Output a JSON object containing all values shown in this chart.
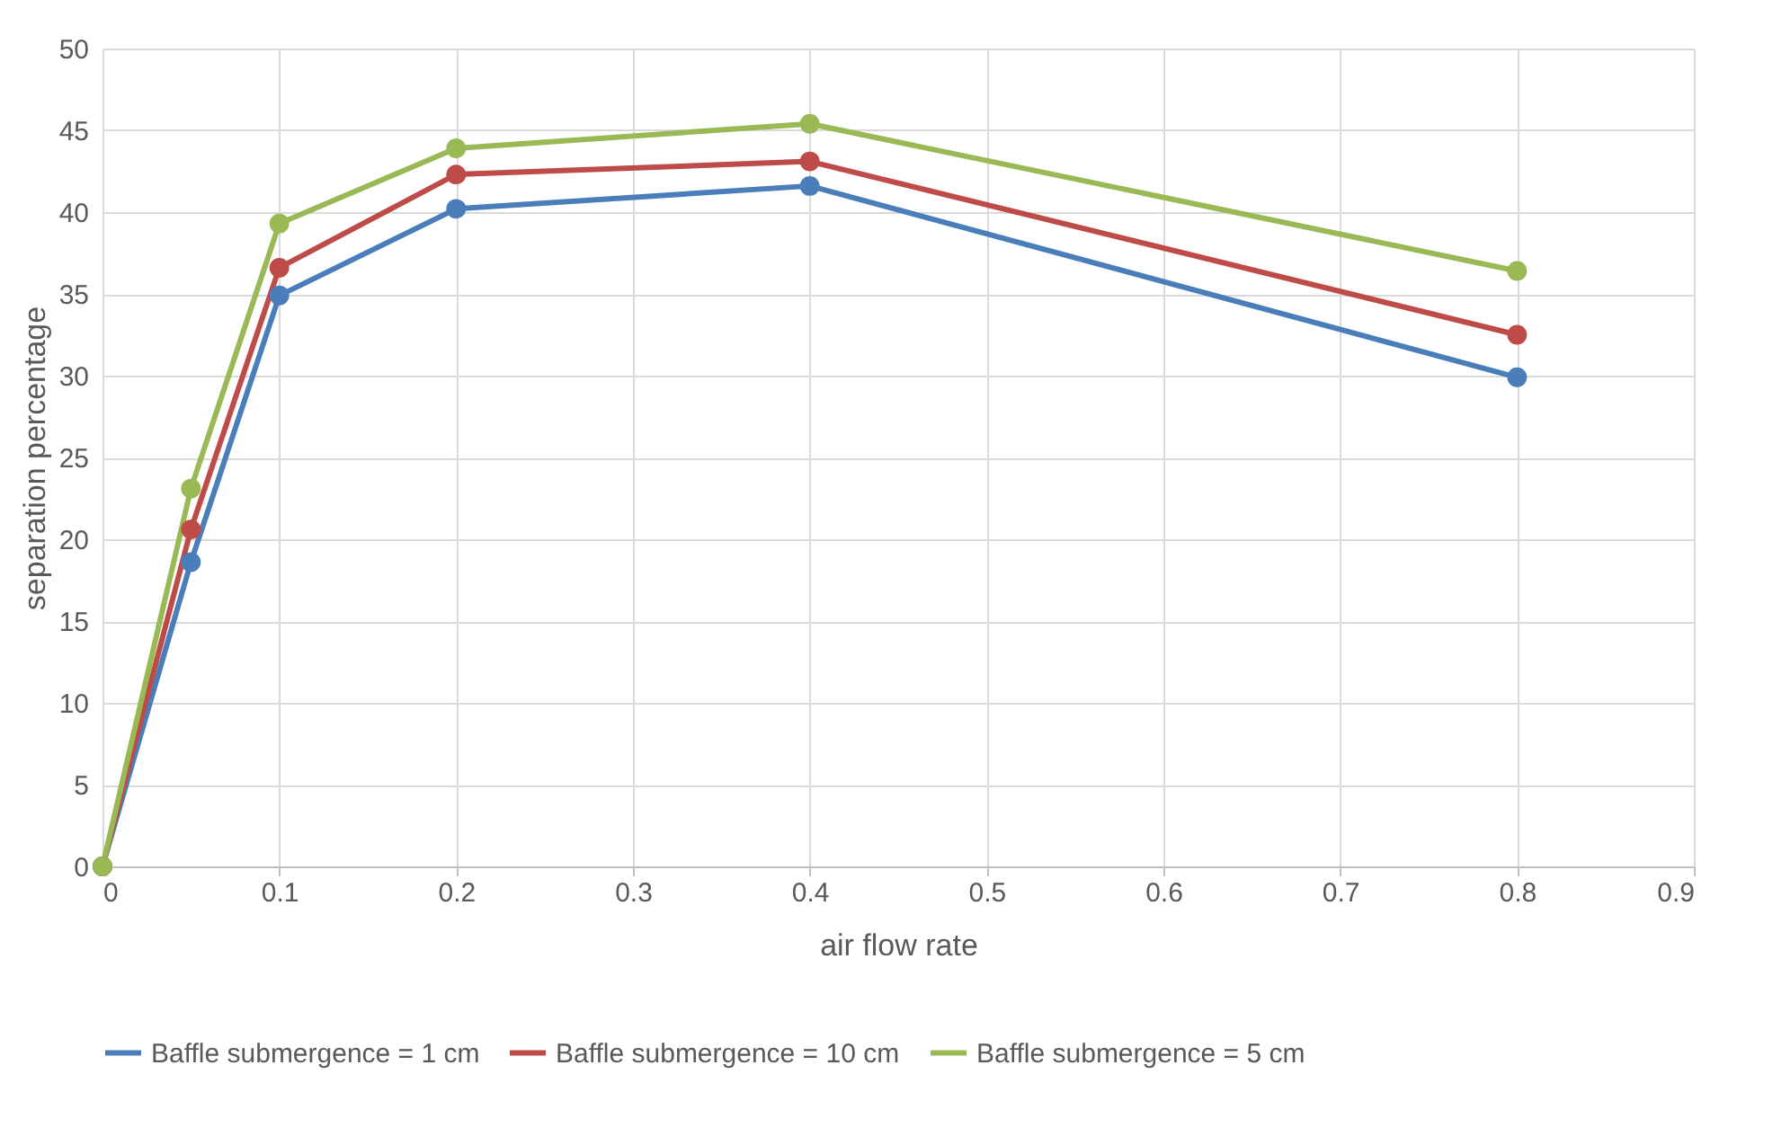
{
  "chart_data": {
    "type": "line",
    "xlabel": "air flow rate",
    "ylabel": "separation percentage",
    "x": [
      0,
      0.05,
      0.1,
      0.2,
      0.4,
      0.8
    ],
    "series": [
      {
        "name": "Baffle submergence = 1 cm",
        "color": "#4a7ebb",
        "values": [
          0,
          18.6,
          34.9,
          40.2,
          41.6,
          29.9
        ]
      },
      {
        "name": "Baffle submergence = 10 cm",
        "color": "#be4b48",
        "values": [
          0,
          20.6,
          36.6,
          42.3,
          43.1,
          32.5
        ]
      },
      {
        "name": "Baffle submergence = 5 cm",
        "color": "#98b954",
        "values": [
          0,
          23.1,
          39.3,
          43.9,
          45.4,
          36.4
        ]
      }
    ],
    "xlim": [
      0,
      0.9
    ],
    "xticks": [
      0,
      0.1,
      0.2,
      0.3,
      0.4,
      0.5,
      0.6,
      0.7,
      0.8,
      0.9
    ],
    "ylim": [
      0,
      50
    ],
    "yticks": [
      0,
      5,
      10,
      15,
      20,
      25,
      30,
      35,
      40,
      45,
      50
    ],
    "grid": true,
    "legend": "bottom",
    "marker": "circle",
    "line_style": "solid"
  }
}
